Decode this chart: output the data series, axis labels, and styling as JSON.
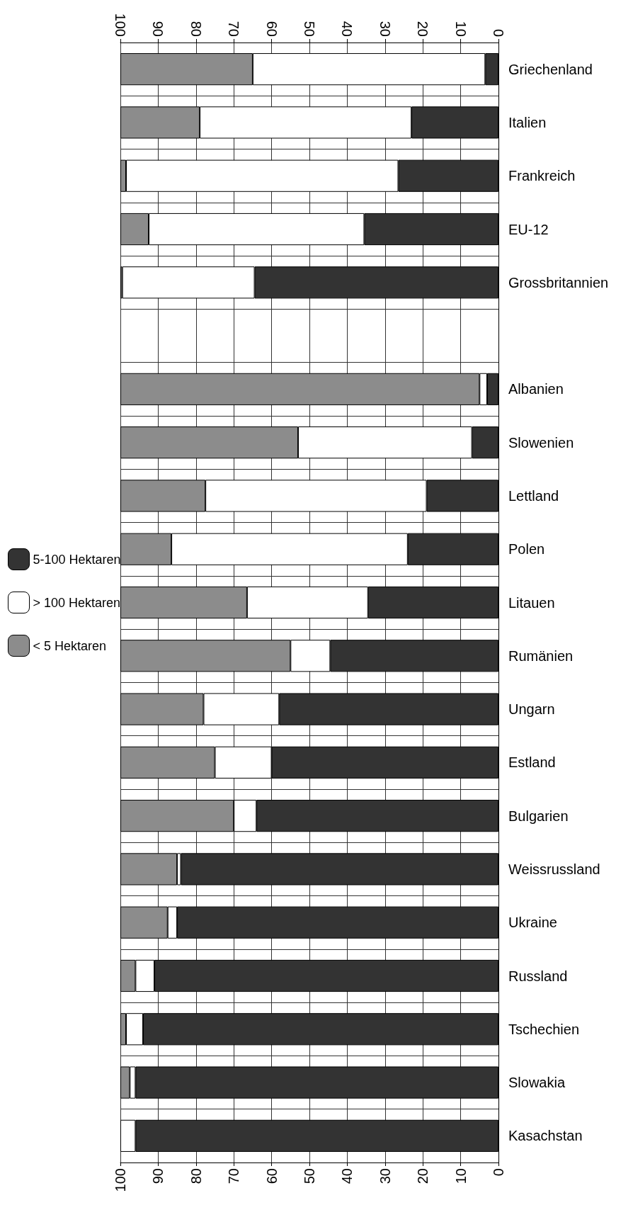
{
  "chart_data": {
    "type": "bar",
    "orientation": "horizontal",
    "stacked": true,
    "categories": [
      "Griechenland",
      "Italien",
      "Frankreich",
      "EU-12",
      "Grossbritannien",
      null,
      "Albanien",
      "Slowenien",
      "Lettland",
      "Polen",
      "Litauen",
      "Rumänien",
      "Ungarn",
      "Estland",
      "Bulgarien",
      "Weissrussland",
      "Ukraine",
      "Russland",
      "Tschechien",
      "Slowakia",
      "Kasachstan"
    ],
    "series": [
      {
        "name": "5-100 Hektaren",
        "color": "#333333",
        "values": [
          3.5,
          23,
          26.5,
          35.5,
          64.5,
          null,
          3,
          7,
          19,
          24,
          34.5,
          44.5,
          58,
          60,
          64,
          84,
          85,
          91,
          94,
          96,
          96
        ]
      },
      {
        "name": "> 100 Hektaren",
        "color": "#ffffff",
        "values": [
          61.5,
          56,
          72,
          57,
          35,
          null,
          2,
          46,
          58.5,
          62.5,
          32,
          10.5,
          20,
          15,
          6,
          1,
          2.5,
          5,
          4.5,
          1.5,
          4
        ]
      },
      {
        "name": "< 5 Hektaren",
        "color": "#8c8c8c",
        "values": [
          35,
          21,
          1.5,
          7.5,
          0.5,
          null,
          95,
          47,
          22.5,
          13.5,
          33.5,
          45,
          22,
          25,
          30,
          15,
          12.5,
          4,
          1.5,
          2.5,
          0
        ]
      }
    ],
    "xlim": [
      100,
      0
    ],
    "xticks": [
      100,
      90,
      80,
      70,
      60,
      50,
      40,
      30,
      20,
      10,
      0
    ],
    "x2lim": [
      100,
      0
    ],
    "x2ticks": [
      100,
      90,
      80,
      70,
      60,
      50,
      40,
      30,
      20,
      10,
      0
    ],
    "grid": true,
    "legend": "left"
  }
}
